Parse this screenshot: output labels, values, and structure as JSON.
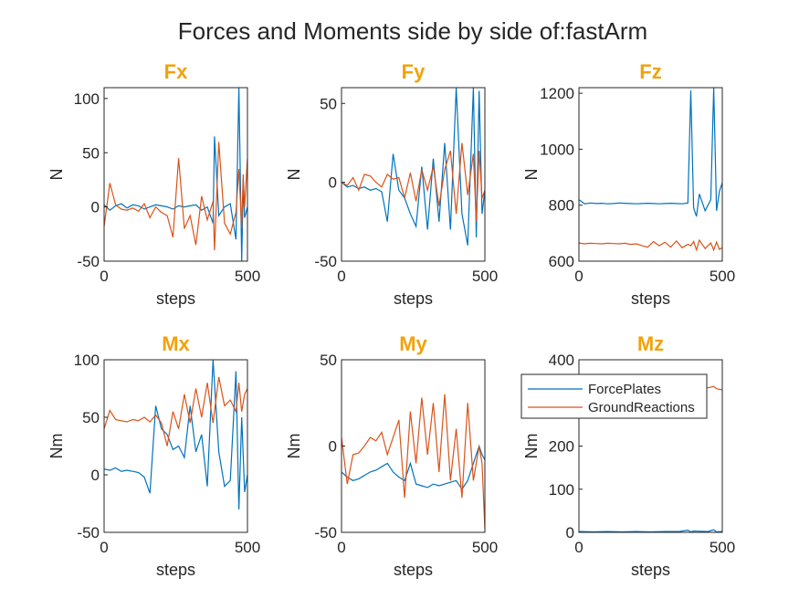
{
  "figure_title": "Forces and Moments side by side of:fastArm",
  "colors": {
    "title_accent": "#f0a30a",
    "series_forceplates": "#0072bd",
    "series_groundreactions": "#d95319",
    "axis": "#262626"
  },
  "legend": {
    "placement": "inside-top-right of Mz panel",
    "entries": [
      "ForcePlates",
      "GroundReactions"
    ]
  },
  "chart_data": [
    {
      "type": "line",
      "title": "Fx",
      "xlabel": "steps",
      "ylabel": "N",
      "xlim": [
        0,
        500
      ],
      "ylim": [
        -50,
        110
      ],
      "xticks": [
        "0",
        "500"
      ],
      "yticks": [
        "-50",
        "0",
        "50",
        "100"
      ],
      "x": [
        0,
        20,
        40,
        60,
        80,
        100,
        120,
        140,
        160,
        180,
        200,
        220,
        240,
        260,
        280,
        300,
        320,
        340,
        360,
        380,
        385,
        400,
        420,
        440,
        460,
        470,
        480,
        485,
        490,
        500
      ],
      "series": [
        {
          "name": "ForcePlates",
          "values": [
            2,
            -3,
            1,
            3,
            -1,
            2,
            1,
            -2,
            0,
            2,
            1,
            0,
            -2,
            1,
            0,
            1,
            2,
            -3,
            0,
            -15,
            65,
            -8,
            0,
            3,
            -30,
            110,
            -50,
            20,
            -10,
            0
          ]
        },
        {
          "name": "GroundReactions",
          "values": [
            -18,
            22,
            2,
            -2,
            -3,
            -1,
            -4,
            3,
            -10,
            0,
            -5,
            -8,
            -28,
            45,
            -20,
            -8,
            -35,
            10,
            -12,
            5,
            -40,
            60,
            -15,
            -25,
            -5,
            35,
            -20,
            30,
            0,
            45
          ]
        }
      ]
    },
    {
      "type": "line",
      "title": "Fy",
      "xlabel": "steps",
      "ylabel": "N",
      "xlim": [
        0,
        500
      ],
      "ylim": [
        -50,
        60
      ],
      "xticks": [
        "0",
        "500"
      ],
      "yticks": [
        "-50",
        "0",
        "50"
      ],
      "x": [
        0,
        20,
        40,
        60,
        80,
        100,
        120,
        140,
        160,
        180,
        200,
        220,
        240,
        260,
        280,
        300,
        320,
        340,
        360,
        380,
        400,
        420,
        440,
        460,
        470,
        480,
        490,
        500
      ],
      "series": [
        {
          "name": "ForcePlates",
          "values": [
            0,
            -3,
            -2,
            -4,
            -3,
            -5,
            -4,
            -6,
            -25,
            18,
            -5,
            -10,
            -20,
            -28,
            10,
            -30,
            15,
            -25,
            25,
            -30,
            60,
            -20,
            -40,
            60,
            -35,
            58,
            -20,
            -5
          ]
        },
        {
          "name": "GroundReactions",
          "values": [
            0,
            -2,
            3,
            -5,
            5,
            4,
            0,
            -3,
            5,
            2,
            3,
            -10,
            6,
            -12,
            8,
            -5,
            10,
            -15,
            8,
            20,
            -20,
            25,
            -8,
            18,
            -25,
            20,
            -10,
            -5
          ]
        }
      ]
    },
    {
      "type": "line",
      "title": "Fz",
      "xlabel": "steps",
      "ylabel": "N",
      "xlim": [
        0,
        500
      ],
      "ylim": [
        600,
        1220
      ],
      "xticks": [
        "0",
        "500"
      ],
      "yticks": [
        "600",
        "800",
        "1000",
        "1200"
      ],
      "x": [
        0,
        20,
        40,
        60,
        80,
        100,
        120,
        140,
        160,
        180,
        200,
        220,
        240,
        260,
        280,
        300,
        320,
        340,
        360,
        380,
        390,
        400,
        410,
        420,
        440,
        460,
        470,
        480,
        490,
        500
      ],
      "series": [
        {
          "name": "ForcePlates",
          "values": [
            820,
            805,
            808,
            806,
            807,
            805,
            806,
            808,
            807,
            806,
            805,
            806,
            807,
            806,
            805,
            806,
            807,
            806,
            805,
            808,
            1210,
            790,
            760,
            840,
            780,
            820,
            1220,
            780,
            850,
            880
          ]
        },
        {
          "name": "GroundReactions",
          "values": [
            665,
            662,
            664,
            663,
            662,
            664,
            663,
            662,
            664,
            660,
            662,
            655,
            650,
            670,
            655,
            668,
            650,
            672,
            648,
            660,
            655,
            670,
            640,
            675,
            645,
            665,
            640,
            668,
            642,
            648
          ]
        }
      ]
    },
    {
      "type": "line",
      "title": "Mx",
      "xlabel": "steps",
      "ylabel": "Nm",
      "xlim": [
        0,
        500
      ],
      "ylim": [
        -50,
        100
      ],
      "xticks": [
        "0",
        "500"
      ],
      "yticks": [
        "-50",
        "0",
        "50",
        "100"
      ],
      "x": [
        0,
        20,
        40,
        60,
        80,
        100,
        120,
        140,
        160,
        180,
        200,
        220,
        240,
        260,
        280,
        300,
        320,
        340,
        360,
        380,
        400,
        420,
        440,
        460,
        470,
        480,
        490,
        500
      ],
      "series": [
        {
          "name": "ForcePlates",
          "values": [
            5,
            4,
            6,
            3,
            4,
            3,
            2,
            -2,
            -16,
            60,
            40,
            35,
            22,
            25,
            15,
            60,
            20,
            35,
            -10,
            100,
            20,
            -10,
            -5,
            90,
            -30,
            50,
            -15,
            0
          ]
        },
        {
          "name": "GroundReactions",
          "values": [
            40,
            56,
            48,
            47,
            46,
            48,
            47,
            50,
            46,
            52,
            45,
            25,
            55,
            40,
            70,
            45,
            75,
            50,
            80,
            45,
            85,
            60,
            65,
            55,
            80,
            55,
            70,
            75
          ]
        }
      ]
    },
    {
      "type": "line",
      "title": "My",
      "xlabel": "steps",
      "ylabel": "Nm",
      "xlim": [
        0,
        500
      ],
      "ylim": [
        -50,
        50
      ],
      "xticks": [
        "0",
        "500"
      ],
      "yticks": [
        "-50",
        "0",
        "50"
      ],
      "x": [
        0,
        20,
        40,
        60,
        80,
        100,
        120,
        140,
        160,
        180,
        200,
        220,
        240,
        260,
        280,
        300,
        320,
        340,
        360,
        380,
        400,
        420,
        440,
        460,
        480,
        490,
        500
      ],
      "series": [
        {
          "name": "ForcePlates",
          "values": [
            -15,
            -18,
            -20,
            -19,
            -17,
            -15,
            -14,
            -12,
            -10,
            -15,
            -18,
            -20,
            -10,
            -22,
            -23,
            -24,
            -22,
            -23,
            -22,
            -21,
            -20,
            -25,
            -20,
            -10,
            0,
            -5,
            -8
          ]
        },
        {
          "name": "GroundReactions",
          "values": [
            5,
            -22,
            -5,
            -4,
            0,
            5,
            3,
            8,
            -5,
            5,
            15,
            -30,
            20,
            -10,
            28,
            -5,
            25,
            -15,
            30,
            -20,
            10,
            -30,
            25,
            -20,
            0,
            -10,
            -48
          ]
        }
      ]
    },
    {
      "type": "line",
      "title": "Mz",
      "xlabel": "steps",
      "ylabel": "Nm",
      "xlim": [
        0,
        500
      ],
      "ylim": [
        0,
        400
      ],
      "xticks": [
        "0",
        "500"
      ],
      "yticks": [
        "0",
        "100",
        "200",
        "300",
        "400"
      ],
      "x": [
        0,
        50,
        100,
        150,
        200,
        250,
        300,
        350,
        380,
        390,
        400,
        450,
        470,
        480,
        500
      ],
      "series": [
        {
          "name": "ForcePlates",
          "values": [
            2,
            1,
            2,
            1,
            2,
            1,
            2,
            2,
            5,
            1,
            3,
            2,
            6,
            1,
            2
          ]
        },
        {
          "name": "GroundReactions",
          "values": [
            330,
            330,
            330,
            330,
            330,
            330,
            330,
            330,
            330,
            330,
            340,
            335,
            338,
            333,
            330
          ]
        }
      ]
    }
  ]
}
